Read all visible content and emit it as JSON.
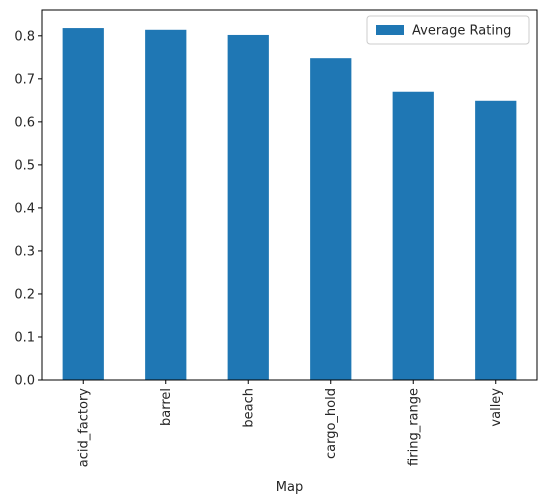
{
  "chart_data": {
    "type": "bar",
    "title": "",
    "xlabel": "Map",
    "ylabel": "",
    "categories": [
      "acid_factory",
      "barrel",
      "beach",
      "cargo_hold",
      "firing_range",
      "valley"
    ],
    "series": [
      {
        "name": "Average Rating",
        "values": [
          0.818,
          0.814,
          0.802,
          0.748,
          0.67,
          0.649
        ]
      }
    ],
    "ylim": [
      0,
      0.86
    ],
    "yticks": [
      0.0,
      0.1,
      0.2,
      0.3,
      0.4,
      0.5,
      0.6,
      0.7,
      0.8
    ],
    "ytick_labels": [
      "0.0",
      "0.1",
      "0.2",
      "0.3",
      "0.4",
      "0.5",
      "0.6",
      "0.7",
      "0.8"
    ],
    "grid": false,
    "legend_position": "top-right",
    "colors": {
      "bar": "#1f77b4",
      "axis": "#000000",
      "text": "#262626"
    }
  }
}
